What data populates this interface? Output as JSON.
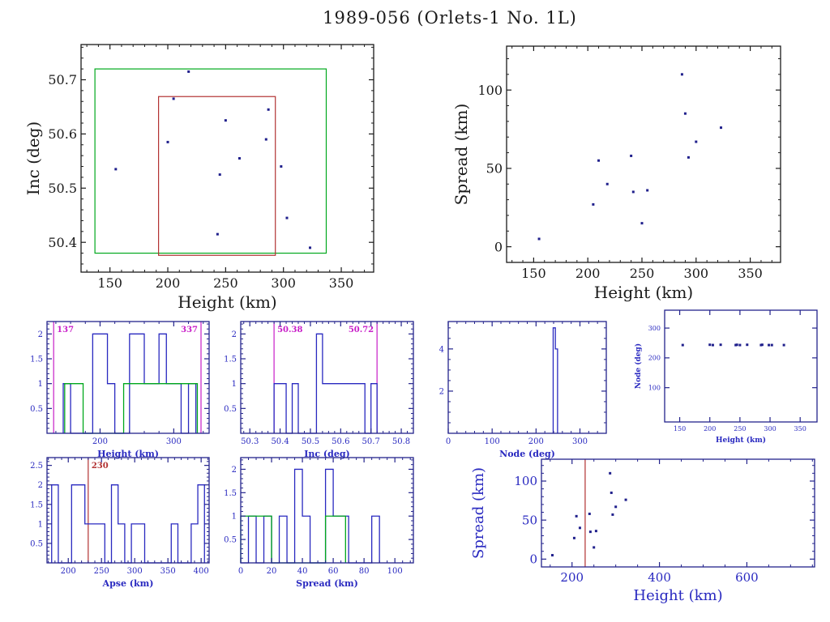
{
  "title": "1989-056 (Orlets-1 No. 1L)",
  "colors": {
    "black": "#1a1a1a",
    "navy": "#23238c",
    "blue": "#2929c0",
    "green": "#00a81c",
    "magenta": "#c81ec8",
    "red": "#b23232",
    "point": "#20208c"
  },
  "chart_data": [
    {
      "id": "inc_height",
      "type": "scatter",
      "xlabel": "Height (km)",
      "ylabel": "Inc (deg)",
      "xlim": [
        125,
        378
      ],
      "ylim": [
        50.345,
        50.765
      ],
      "xticks": [
        150,
        200,
        250,
        300,
        350
      ],
      "yticks": [
        50.4,
        50.5,
        50.6,
        50.7
      ],
      "xminor": 10,
      "yminor": 0.02,
      "frame_color": "black",
      "tick_color": "black",
      "label_color": "black",
      "points": [
        [
          155,
          50.535
        ],
        [
          200,
          50.585
        ],
        [
          205,
          50.665
        ],
        [
          218,
          50.715
        ],
        [
          243,
          50.415
        ],
        [
          245,
          50.525
        ],
        [
          250,
          50.625
        ],
        [
          262,
          50.555
        ],
        [
          285,
          50.59
        ],
        [
          287,
          50.645
        ],
        [
          298,
          50.54
        ],
        [
          303,
          50.445
        ],
        [
          323,
          50.39
        ]
      ],
      "boxes": [
        {
          "x0": 137,
          "x1": 337,
          "y0": 50.38,
          "y1": 50.72,
          "color": "green"
        },
        {
          "x0": 192,
          "x1": 293,
          "y0": 50.376,
          "y1": 50.669,
          "color": "red"
        }
      ]
    },
    {
      "id": "spread_height",
      "type": "scatter",
      "xlabel": "Height (km)",
      "ylabel": "Spread (km)",
      "xlim": [
        125,
        378
      ],
      "ylim": [
        -10,
        128
      ],
      "xticks": [
        150,
        200,
        250,
        300,
        350
      ],
      "yticks": [
        0,
        50,
        100
      ],
      "xminor": 10,
      "yminor": 10,
      "frame_color": "black",
      "tick_color": "black",
      "label_color": "black",
      "points": [
        [
          155,
          5
        ],
        [
          205,
          27
        ],
        [
          210,
          55
        ],
        [
          218,
          40
        ],
        [
          240,
          58
        ],
        [
          242,
          35
        ],
        [
          250,
          15
        ],
        [
          255,
          36
        ],
        [
          287,
          110
        ],
        [
          290,
          85
        ],
        [
          293,
          57
        ],
        [
          300,
          67
        ],
        [
          323,
          76
        ]
      ]
    },
    {
      "id": "hist_height",
      "type": "histogram",
      "xlabel": "Height (km)",
      "xlim": [
        128,
        348
      ],
      "ylim": [
        0,
        2.25
      ],
      "xticks": [
        200,
        300
      ],
      "yticks": [
        0.5,
        1,
        1.5,
        2
      ],
      "xminor": 20,
      "yminor": 0.1,
      "bold": true,
      "frame_color": "navy",
      "tick_color": "blue",
      "label_color": "blue",
      "series": [
        {
          "color": "blue",
          "edges": [
            150,
            160,
            170,
            180,
            190,
            200,
            210,
            220,
            230,
            240,
            250,
            260,
            270,
            280,
            290,
            300,
            310,
            320,
            330
          ],
          "counts": [
            1,
            0,
            0,
            0,
            2,
            2,
            1,
            0,
            0,
            2,
            2,
            1,
            1,
            2,
            1,
            1,
            0,
            1
          ]
        },
        {
          "color": "green",
          "edges": [
            152,
            177,
            202,
            232,
            257,
            282,
            307,
            332
          ],
          "counts": [
            1,
            0,
            0,
            1,
            1,
            1,
            1
          ]
        }
      ],
      "vlines": [
        {
          "x": 137,
          "color": "magenta",
          "label": "137",
          "side": "right"
        },
        {
          "x": 337,
          "color": "magenta",
          "label": "337",
          "side": "left"
        }
      ]
    },
    {
      "id": "hist_inc",
      "type": "histogram",
      "xlabel": "Inc (deg)",
      "xlim": [
        50.27,
        50.84
      ],
      "ylim": [
        0,
        2.25
      ],
      "xticks": [
        50.3,
        50.4,
        50.5,
        50.6,
        50.7,
        50.8
      ],
      "yticks": [
        0.5,
        1,
        1.5,
        2
      ],
      "xminor": 0.02,
      "yminor": 0.1,
      "bold": true,
      "frame_color": "navy",
      "tick_color": "blue",
      "label_color": "blue",
      "series": [
        {
          "color": "blue",
          "edges": [
            50.38,
            50.4,
            50.42,
            50.44,
            50.46,
            50.48,
            50.5,
            50.52,
            50.54,
            50.56,
            50.58,
            50.6,
            50.62,
            50.64,
            50.66,
            50.68,
            50.7,
            50.72
          ],
          "counts": [
            1,
            1,
            0,
            1,
            0,
            0,
            0,
            2,
            1,
            1,
            1,
            1,
            1,
            1,
            1,
            0,
            1
          ]
        }
      ],
      "vlines": [
        {
          "x": 50.38,
          "color": "magenta",
          "label": "50.38",
          "side": "right"
        },
        {
          "x": 50.72,
          "color": "magenta",
          "label": "50.72",
          "side": "left"
        }
      ]
    },
    {
      "id": "hist_node",
      "type": "histogram",
      "xlabel": "Node (deg)",
      "xlim": [
        0,
        360
      ],
      "ylim": [
        0,
        5.3
      ],
      "xticks": [
        0,
        100,
        200,
        300
      ],
      "yticks": [
        2,
        4
      ],
      "xminor": 20,
      "yminor": 0.5,
      "bold": true,
      "frame_color": "navy",
      "tick_color": "blue",
      "label_color": "blue",
      "series": [
        {
          "color": "blue",
          "edges": [
            239,
            244,
            249
          ],
          "counts": [
            5,
            4
          ]
        }
      ]
    },
    {
      "id": "node_height",
      "type": "scatter",
      "xlabel": "Height (km)",
      "ylabel": "Node (deg)",
      "xlim": [
        125,
        378
      ],
      "ylim": [
        -15,
        360
      ],
      "xticks": [
        150,
        200,
        250,
        300,
        350
      ],
      "yticks": [
        100,
        200,
        300
      ],
      "bold": true,
      "frame_color": "navy",
      "tick_color": "blue",
      "label_color": "blue",
      "points": [
        [
          155,
          243
        ],
        [
          200,
          244
        ],
        [
          205,
          243
        ],
        [
          218,
          244
        ],
        [
          243,
          243
        ],
        [
          245,
          244
        ],
        [
          250,
          243
        ],
        [
          262,
          244
        ],
        [
          285,
          243
        ],
        [
          287,
          244
        ],
        [
          298,
          243
        ],
        [
          303,
          243
        ],
        [
          323,
          243
        ]
      ]
    },
    {
      "id": "hist_apse",
      "type": "histogram",
      "xlabel": "Apse (km)",
      "xlim": [
        168,
        412
      ],
      "ylim": [
        0,
        2.7
      ],
      "xticks": [
        200,
        250,
        300,
        350,
        400
      ],
      "yticks": [
        0.5,
        1,
        1.5,
        2,
        2.5
      ],
      "xminor": 10,
      "yminor": 0.1,
      "bold": true,
      "frame_color": "navy",
      "tick_color": "blue",
      "label_color": "blue",
      "series": [
        {
          "color": "blue",
          "edges": [
            175,
            185,
            195,
            205,
            215,
            225,
            235,
            245,
            255,
            265,
            275,
            285,
            295,
            305,
            315,
            325,
            335,
            345,
            355,
            365,
            375,
            385,
            395,
            405
          ],
          "counts": [
            2,
            0,
            0,
            2,
            2,
            1,
            1,
            1,
            0,
            2,
            1,
            0,
            1,
            1,
            0,
            0,
            0,
            0,
            1,
            0,
            0,
            1,
            2
          ]
        }
      ],
      "vlines": [
        {
          "x": 230,
          "color": "red",
          "label": "230",
          "side": "right"
        }
      ]
    },
    {
      "id": "hist_spread",
      "type": "histogram",
      "xlabel": "Spread (km)",
      "xlim": [
        0,
        112
      ],
      "ylim": [
        0,
        2.25
      ],
      "xticks": [
        0,
        20,
        40,
        60,
        80,
        100
      ],
      "yticks": [
        0.5,
        1,
        1.5,
        2
      ],
      "xminor": 5,
      "yminor": 0.1,
      "bold": true,
      "frame_color": "navy",
      "tick_color": "blue",
      "label_color": "blue",
      "series": [
        {
          "color": "blue",
          "edges": [
            0,
            5,
            10,
            15,
            20,
            25,
            30,
            35,
            40,
            45,
            50,
            55,
            60,
            65,
            70,
            75,
            80,
            85,
            90
          ],
          "counts": [
            0,
            1,
            0,
            1,
            0,
            1,
            0,
            2,
            1,
            0,
            0,
            2,
            1,
            1,
            0,
            0,
            0,
            1
          ]
        },
        {
          "color": "green",
          "edges": [
            0,
            6,
            13,
            20,
            55,
            61,
            68
          ],
          "counts": [
            1,
            1,
            1,
            0,
            1,
            1
          ]
        }
      ]
    },
    {
      "id": "spread_height2",
      "type": "scatter",
      "xlabel": "Height (km)",
      "ylabel": "Spread (km)",
      "xlim": [
        130,
        755
      ],
      "ylim": [
        -10,
        128
      ],
      "xticks": [
        200,
        400,
        600
      ],
      "yticks": [
        0,
        50,
        100
      ],
      "xminor": 50,
      "yminor": 10,
      "frame_color": "navy",
      "tick_color": "blue",
      "label_color": "blue",
      "points": [
        [
          155,
          5
        ],
        [
          205,
          27
        ],
        [
          210,
          55
        ],
        [
          218,
          40
        ],
        [
          240,
          58
        ],
        [
          242,
          35
        ],
        [
          250,
          15
        ],
        [
          255,
          36
        ],
        [
          287,
          110
        ],
        [
          290,
          85
        ],
        [
          293,
          57
        ],
        [
          300,
          67
        ],
        [
          323,
          76
        ]
      ],
      "vlines": [
        {
          "x": 230,
          "color": "red",
          "side": "right"
        }
      ]
    }
  ]
}
